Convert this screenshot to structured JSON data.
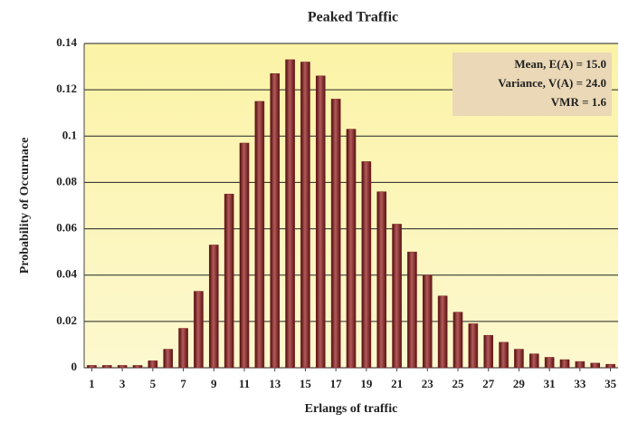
{
  "chart_data": {
    "type": "bar",
    "title": "Peaked Traffic",
    "x_label": "Erlangs of traffic",
    "y_label": "Probability of Occurnace",
    "annotations": [
      "Mean, E(A) = 15.0",
      "Variance, V(A) = 24.0",
      "VMR = 1.6"
    ],
    "x": [
      1,
      2,
      3,
      4,
      5,
      6,
      7,
      8,
      9,
      10,
      11,
      12,
      13,
      14,
      15,
      16,
      17,
      18,
      19,
      20,
      21,
      22,
      23,
      24,
      25,
      26,
      27,
      28,
      29,
      30,
      31,
      32,
      33,
      34,
      35
    ],
    "values": [
      0.001,
      0.001,
      0.001,
      0.001,
      0.003,
      0.008,
      0.017,
      0.033,
      0.053,
      0.075,
      0.097,
      0.115,
      0.127,
      0.133,
      0.132,
      0.126,
      0.116,
      0.103,
      0.089,
      0.076,
      0.062,
      0.05,
      0.04,
      0.031,
      0.024,
      0.019,
      0.014,
      0.011,
      0.008,
      0.006,
      0.0045,
      0.0035,
      0.0027,
      0.002,
      0.0015
    ],
    "color": "#7a1f1f",
    "xlim": [
      0.5,
      35.5
    ],
    "xticks": [
      1,
      3,
      5,
      7,
      9,
      11,
      13,
      15,
      17,
      19,
      21,
      23,
      25,
      27,
      29,
      31,
      33,
      35
    ],
    "ylim": [
      0,
      0.14
    ],
    "yticks": [
      0,
      0.02,
      0.04,
      0.06,
      0.08,
      0.1,
      0.12,
      0.14
    ],
    "grid": true
  }
}
